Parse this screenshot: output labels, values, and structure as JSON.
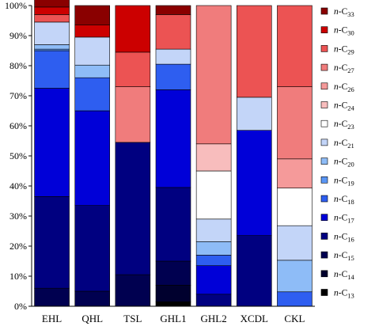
{
  "chart_data": {
    "type": "bar",
    "stacked": true,
    "percent": true,
    "title": "",
    "xlabel": "",
    "ylabel": "",
    "ylim": [
      0,
      100
    ],
    "yticks": [
      "0%",
      "10%",
      "20%",
      "30%",
      "40%",
      "50%",
      "60%",
      "70%",
      "80%",
      "90%",
      "100%"
    ],
    "grid": false,
    "legend_position": "right",
    "categories": [
      "EHL",
      "QHL",
      "TSL",
      "GHL1",
      "GHL2",
      "XCDL",
      "CKL"
    ],
    "series": [
      {
        "name": "n-C13",
        "prefix": "n-C",
        "sub": "13",
        "color": "#000000",
        "values": [
          0,
          0,
          0,
          1.5,
          0,
          0,
          0
        ]
      },
      {
        "name": "n-C14",
        "prefix": "n-C",
        "sub": "14",
        "color": "#00002e",
        "values": [
          0,
          0,
          0,
          5.5,
          0,
          0,
          0
        ]
      },
      {
        "name": "n-C15",
        "prefix": "n-C",
        "sub": "15",
        "color": "#000050",
        "values": [
          6,
          5,
          10.5,
          8,
          0,
          0,
          0
        ]
      },
      {
        "name": "n-C16",
        "prefix": "n-C",
        "sub": "16",
        "color": "#000080",
        "values": [
          30.5,
          28.5,
          44,
          24.5,
          4,
          23.5,
          0
        ]
      },
      {
        "name": "n-C17",
        "prefix": "n-C",
        "sub": "17",
        "color": "#0000d8",
        "values": [
          36,
          31.5,
          0,
          32.5,
          9.5,
          35,
          0
        ]
      },
      {
        "name": "n-C18",
        "prefix": "n-C",
        "sub": "18",
        "color": "#2e5ef0",
        "values": [
          12.5,
          11,
          0,
          8.5,
          3.5,
          0,
          4.8
        ]
      },
      {
        "name": "n-C19",
        "prefix": "n-C",
        "sub": "19",
        "color": "#5a96f5",
        "values": [
          0.5,
          0,
          0,
          0,
          0,
          0,
          0
        ]
      },
      {
        "name": "n-C20",
        "prefix": "n-C",
        "sub": "20",
        "color": "#8ebcf7",
        "values": [
          1.5,
          4.2,
          0,
          0,
          4.5,
          0,
          10.5
        ]
      },
      {
        "name": "n-C21",
        "prefix": "n-C",
        "sub": "21",
        "color": "#c3d5f8",
        "values": [
          7.5,
          9.3,
          0,
          5,
          7.5,
          11,
          11.5
        ]
      },
      {
        "name": "n-C23",
        "prefix": "n-C",
        "sub": "23",
        "color": "#ffffff",
        "values": [
          0,
          0,
          0,
          0,
          16,
          0,
          12.5
        ]
      },
      {
        "name": "n-C24",
        "prefix": "n-C",
        "sub": "24",
        "color": "#f8bdbd",
        "values": [
          0,
          0,
          0,
          0,
          9,
          0,
          0
        ]
      },
      {
        "name": "n-C26",
        "prefix": "n-C",
        "sub": "26",
        "color": "#f59a9a",
        "values": [
          0,
          0,
          0,
          0,
          0,
          0,
          9.7
        ]
      },
      {
        "name": "n-C27",
        "prefix": "n-C",
        "sub": "27",
        "color": "#f07c7c",
        "values": [
          0,
          0,
          18.5,
          0,
          46,
          0,
          24
        ]
      },
      {
        "name": "n-C29",
        "prefix": "n-C",
        "sub": "29",
        "color": "#ec5353",
        "values": [
          2.5,
          0,
          11.5,
          11.5,
          0,
          30.5,
          27
        ]
      },
      {
        "name": "n-C30",
        "prefix": "n-C",
        "sub": "30",
        "color": "#cc0000",
        "values": [
          2.5,
          4,
          15.5,
          0,
          0,
          0,
          0
        ]
      },
      {
        "name": "n-C33",
        "prefix": "n-C",
        "sub": "33",
        "color": "#8a0000",
        "values": [
          3,
          6.5,
          0,
          3,
          0,
          0,
          0
        ]
      }
    ],
    "legend": [
      {
        "prefix": "n-C",
        "sub": "33",
        "color": "#8a0000"
      },
      {
        "prefix": "n-C",
        "sub": "30",
        "color": "#cc0000"
      },
      {
        "prefix": "n-C",
        "sub": "29",
        "color": "#ec5353"
      },
      {
        "prefix": "n-C",
        "sub": "27",
        "color": "#f07c7c"
      },
      {
        "prefix": "n-C",
        "sub": "26",
        "color": "#f59a9a"
      },
      {
        "prefix": "n-C",
        "sub": "24",
        "color": "#f8bdbd"
      },
      {
        "prefix": "n-C",
        "sub": "23",
        "color": "#ffffff"
      },
      {
        "prefix": "n-C",
        "sub": "21",
        "color": "#c3d5f8"
      },
      {
        "prefix": "n-C",
        "sub": "20",
        "color": "#8ebcf7"
      },
      {
        "prefix": "n-C",
        "sub": "19",
        "color": "#5a96f5"
      },
      {
        "prefix": "n-C",
        "sub": "18",
        "color": "#2e5ef0"
      },
      {
        "prefix": "n-C",
        "sub": "17",
        "color": "#0000d8"
      },
      {
        "prefix": "n-C",
        "sub": "16",
        "color": "#000080"
      },
      {
        "prefix": "n-C",
        "sub": "15",
        "color": "#000050"
      },
      {
        "prefix": "n-C",
        "sub": "14",
        "color": "#00002e"
      },
      {
        "prefix": "n-C",
        "sub": "13",
        "color": "#000000"
      }
    ]
  }
}
